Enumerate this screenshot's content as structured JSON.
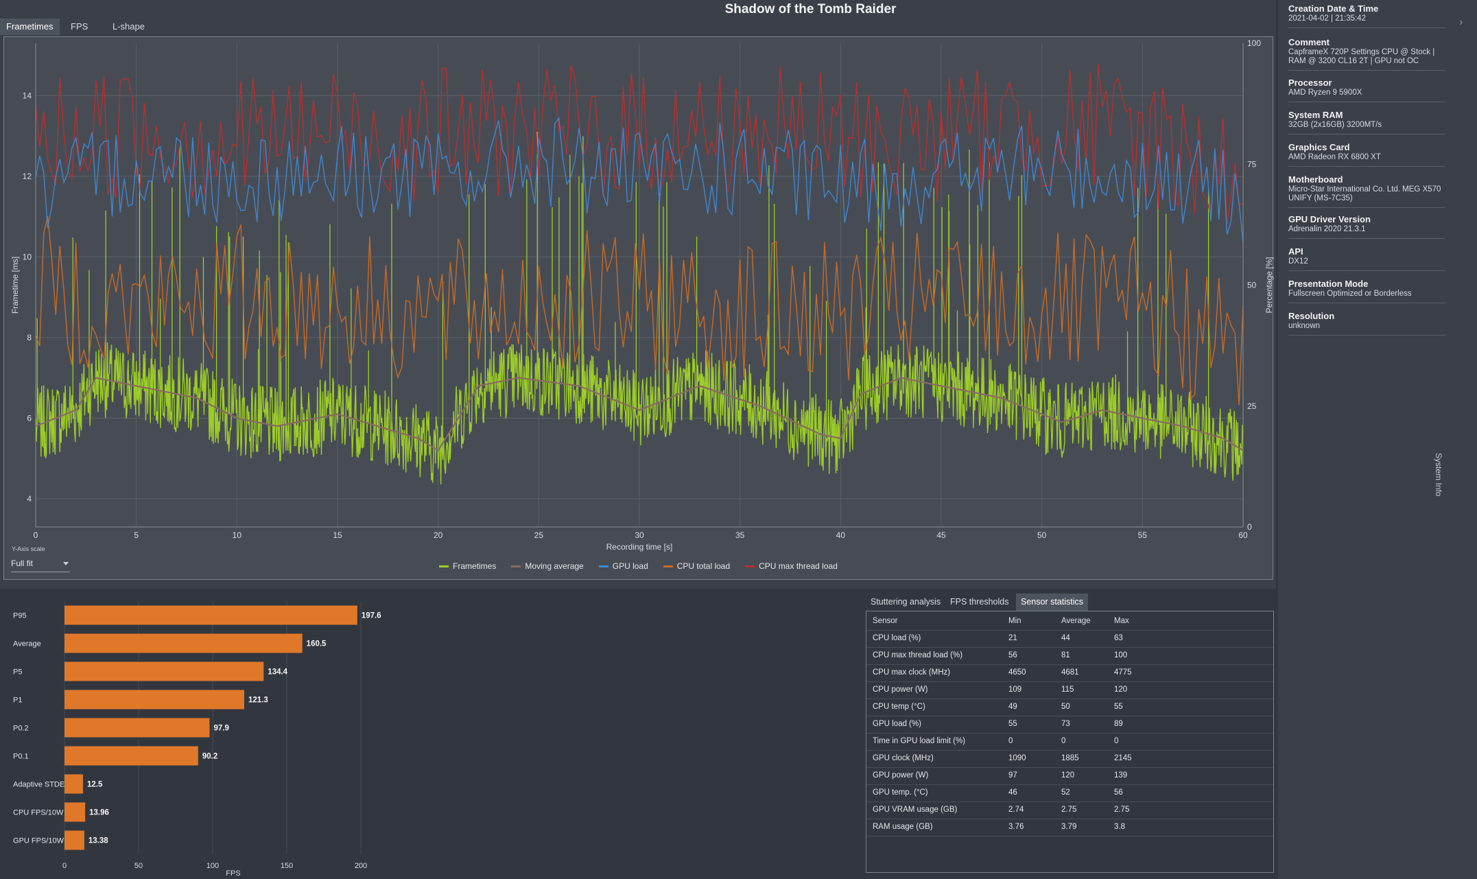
{
  "title": "Shadow of the Tomb Raider",
  "tabs": [
    "Frametimes",
    "FPS",
    "L-shape"
  ],
  "frametime_chart": {
    "y_label": "Frametime [ms]",
    "y2_label": "Percentage [%]",
    "x_label": "Recording time [s]",
    "y_ticks": [
      "4",
      "6",
      "8",
      "10",
      "12",
      "14"
    ],
    "y2_ticks": [
      "0",
      "25",
      "50",
      "75",
      "100"
    ],
    "x_ticks": [
      "0",
      "5",
      "10",
      "15",
      "20",
      "25",
      "30",
      "35",
      "40",
      "45",
      "50",
      "55",
      "60"
    ],
    "legend": [
      {
        "label": "Frametimes",
        "color": "#9ccc28"
      },
      {
        "label": "Moving average",
        "color": "#8a6a60"
      },
      {
        "label": "GPU load",
        "color": "#3f86d0"
      },
      {
        "label": "CPU total load",
        "color": "#c86a26"
      },
      {
        "label": "CPU max thread load",
        "color": "#b8302e"
      }
    ]
  },
  "chart_data": [
    {
      "type": "line",
      "xlabel": "Recording time [s]",
      "ylabel": "Frametime [ms]",
      "y2label": "Percentage [%]",
      "xlim": [
        0,
        60
      ],
      "ylim": [
        3.3,
        15.3
      ],
      "y2lim": [
        0,
        100
      ],
      "series": [
        {
          "name": "Moving average",
          "axis": "left",
          "x": [
            0,
            2,
            3,
            5,
            8,
            10,
            12,
            15,
            19,
            20,
            22,
            24,
            27,
            30,
            33,
            36,
            39,
            40,
            41,
            43,
            45,
            48,
            51,
            53,
            55,
            57,
            59,
            60
          ],
          "values": [
            5.8,
            6.2,
            7.0,
            6.8,
            6.5,
            6.0,
            5.8,
            6.1,
            5.5,
            5.2,
            6.8,
            7.0,
            6.8,
            6.2,
            6.8,
            6.3,
            5.6,
            5.5,
            6.6,
            7.0,
            6.8,
            6.5,
            5.9,
            6.2,
            6.0,
            5.8,
            5.5,
            5.2
          ]
        },
        {
          "name": "GPU load",
          "axis": "right",
          "x": [
            0,
            5,
            10,
            15,
            20,
            25,
            30,
            35,
            40,
            45,
            50,
            55,
            60
          ],
          "values": [
            68,
            75,
            72,
            74,
            72,
            76,
            72,
            74,
            70,
            73,
            74,
            73,
            68
          ]
        },
        {
          "name": "CPU total load",
          "axis": "right",
          "x": [
            0,
            5,
            10,
            15,
            20,
            25,
            30,
            35,
            40,
            45,
            50,
            55,
            60
          ],
          "values": [
            50,
            45,
            48,
            46,
            44,
            47,
            46,
            45,
            44,
            47,
            46,
            45,
            36
          ]
        },
        {
          "name": "CPU max thread load",
          "axis": "right",
          "x": [
            0,
            5,
            10,
            15,
            20,
            25,
            30,
            35,
            40,
            45,
            50,
            55,
            60
          ],
          "values": [
            80,
            82,
            80,
            82,
            81,
            82,
            81,
            82,
            80,
            81,
            83,
            81,
            72
          ]
        }
      ]
    },
    {
      "type": "bar",
      "orientation": "horizontal",
      "xlabel": "FPS",
      "xlim": [
        0,
        200
      ],
      "categories": [
        "P95",
        "Average",
        "P5",
        "P1",
        "P0.2",
        "P0.1",
        "Adaptive STDEV",
        "CPU FPS/10W",
        "GPU FPS/10W"
      ],
      "values": [
        197.6,
        160.5,
        134.4,
        121.3,
        97.9,
        90.2,
        12.5,
        13.96,
        13.38
      ],
      "value_labels": [
        "197.6",
        "160.5",
        "134.4",
        "121.3",
        "97.9",
        "90.2",
        "12.5",
        "13.96",
        "13.38"
      ],
      "x_ticks": [
        "0",
        "50",
        "100",
        "150",
        "200"
      ],
      "color": "#e0782a"
    }
  ],
  "y_axis_scale": {
    "label": "Y-Axis scale",
    "value": "Full fit"
  },
  "system_info": {
    "vertical_label": "System Info",
    "entries": [
      {
        "label": "Creation Date & Time",
        "value": "2021-04-02  |  21:35:42"
      },
      {
        "label": "Comment",
        "value": "CapframeX 720P Settings CPU @ Stock | RAM @ 3200 CL16 2T | GPU not OC"
      },
      {
        "label": "Processor",
        "value": "AMD Ryzen 9 5900X"
      },
      {
        "label": "System RAM",
        "value": "32GB (2x16GB) 3200MT/s"
      },
      {
        "label": "Graphics Card",
        "value": "AMD Radeon RX 6800 XT"
      },
      {
        "label": "Motherboard",
        "value": "Micro-Star International Co. Ltd. MEG X570 UNIFY (MS-7C35)"
      },
      {
        "label": "GPU Driver Version",
        "value": "Adrenalin 2020 21.3.1"
      },
      {
        "label": "API",
        "value": "DX12"
      },
      {
        "label": "Presentation Mode",
        "value": "Fullscreen Optimized or Borderless"
      },
      {
        "label": "Resolution",
        "value": "unknown"
      }
    ]
  },
  "stats_tabs": [
    "Stuttering analysis",
    "FPS thresholds",
    "Sensor statistics"
  ],
  "sensor_table": {
    "headers": [
      "Sensor",
      "Min",
      "Average",
      "Max"
    ],
    "rows": [
      [
        "CPU load (%)",
        "21",
        "44",
        "63"
      ],
      [
        "CPU max thread load (%)",
        "56",
        "81",
        "100"
      ],
      [
        "CPU max clock (MHz)",
        "4650",
        "4681",
        "4775"
      ],
      [
        "CPU power (W)",
        "109",
        "115",
        "120"
      ],
      [
        "CPU temp (°C)",
        "49",
        "50",
        "55"
      ],
      [
        "GPU load (%)",
        "55",
        "73",
        "89"
      ],
      [
        "Time in GPU load limit (%)",
        "0",
        "0",
        "0"
      ],
      [
        "GPU clock (MHz)",
        "1090",
        "1885",
        "2145"
      ],
      [
        "GPU power (W)",
        "97",
        "120",
        "139"
      ],
      [
        "GPU temp. (°C)",
        "46",
        "52",
        "56"
      ],
      [
        "GPU VRAM usage (GB)",
        "2.74",
        "2.75",
        "2.75"
      ],
      [
        "RAM usage (GB)",
        "3.76",
        "3.79",
        "3.8"
      ]
    ]
  }
}
